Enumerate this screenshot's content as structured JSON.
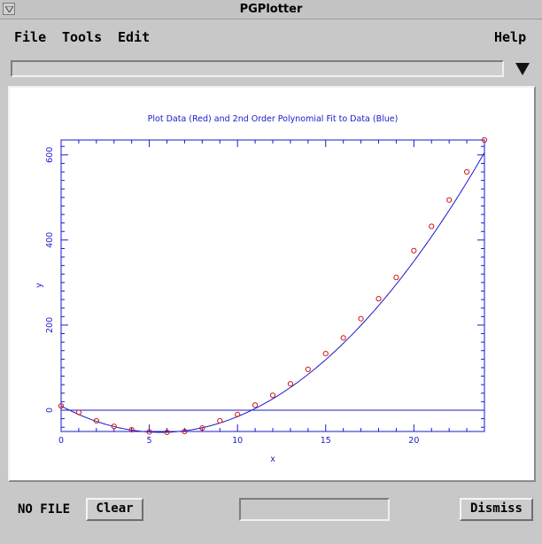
{
  "window": {
    "title": "PGPlotter",
    "system_menu_icon": "down-triangle-icon"
  },
  "menubar": {
    "file": "File",
    "tools": "Tools",
    "edit": "Edit",
    "help": "Help"
  },
  "combo": {
    "value": "",
    "arrow_icon": "down-triangle-icon"
  },
  "status": {
    "file_label": "NO FILE",
    "progress": 0
  },
  "buttons": {
    "clear": "Clear",
    "dismiss": "Dismiss"
  },
  "colors": {
    "axis": "#1a1acc",
    "data_points": "#d01818",
    "fit_line": "#1a1acc",
    "background": "#c8c8c8"
  },
  "chart_data": {
    "type": "scatter",
    "title": "Plot Data (Red) and 2nd Order Polynomial Fit to Data (Blue)",
    "xlabel": "x",
    "ylabel": "y",
    "xlim": [
      0,
      24
    ],
    "ylim": [
      -50,
      635
    ],
    "x_ticks": [
      "0",
      "5",
      "10",
      "15",
      "20"
    ],
    "y_ticks": [
      "0",
      "200",
      "400",
      "600"
    ],
    "series": [
      {
        "name": "Data",
        "style": "points",
        "color": "red",
        "x": [
          0,
          1,
          2,
          3,
          4,
          5,
          6,
          7,
          8,
          9,
          10,
          11,
          12,
          13,
          14,
          15,
          16,
          17,
          18,
          19,
          20,
          21,
          22,
          23,
          24
        ],
        "y": [
          10,
          -5,
          -25,
          -38,
          -46,
          -51,
          -52,
          -50,
          -42,
          -25,
          -10,
          12,
          35,
          62,
          96,
          133,
          170,
          215,
          262,
          312,
          375,
          432,
          494,
          560,
          635
        ]
      },
      {
        "name": "Fit",
        "style": "line",
        "color": "blue",
        "coefficients": [
          10,
          -22,
          1.95
        ]
      }
    ],
    "zero_line": true,
    "grid": false
  }
}
